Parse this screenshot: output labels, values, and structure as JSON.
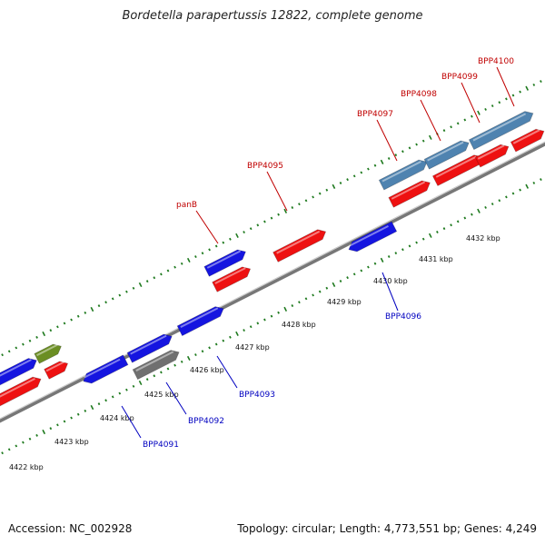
{
  "title": "Bordetella parapertussis 12822, complete genome",
  "footer": {
    "accession": "Accession: NC_002928",
    "stats": "Topology: circular; Length: 4,773,551 bp; Genes: 4,249"
  },
  "colors": {
    "forward_strand_top": "#1a1aee",
    "forward_strand_label": "#c00000",
    "reverse_label": "#0000c0",
    "gene_red": "#ee1111",
    "gene_blue": "#1515e0",
    "gene_steelblue": "#4f83b0",
    "gene_olive": "#6b8e23",
    "gene_gray": "#707070",
    "backbone": "#888888",
    "tick_green": "#1f7a1f"
  },
  "scale_labels": [
    "4422 kbp",
    "4423 kbp",
    "4424 kbp",
    "4425 kbp",
    "4426 kbp",
    "4427 kbp",
    "4428 kbp",
    "4429 kbp",
    "4430 kbp",
    "4431 kbp",
    "4432 kbp"
  ],
  "gene_labels_top": [
    "panB",
    "BPP4095",
    "BPP4097",
    "BPP4098",
    "BPP4099",
    "BPP4100"
  ],
  "gene_labels_bottom": [
    "BPP4091",
    "BPP4092",
    "BPP4093",
    "BPP4096"
  ]
}
